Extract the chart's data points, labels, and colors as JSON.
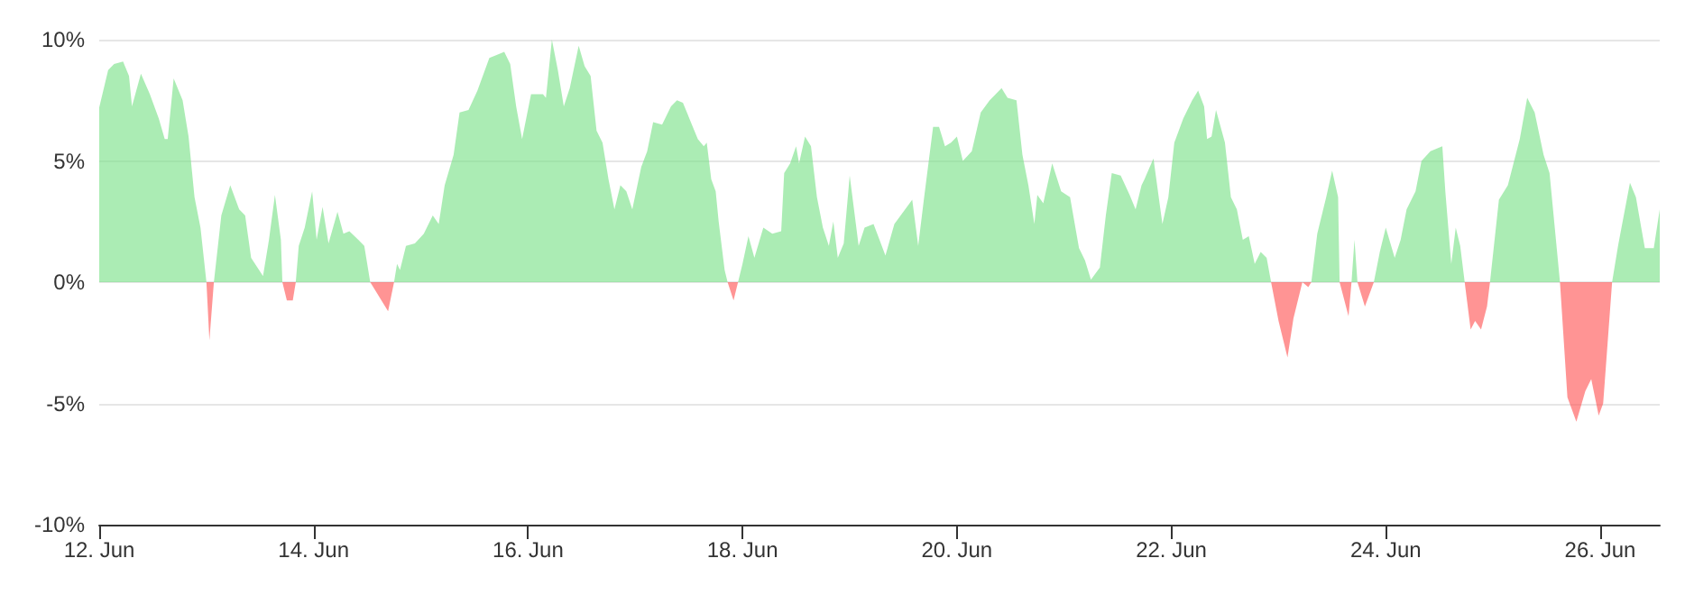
{
  "chart_data": {
    "type": "area",
    "xlim": [
      "--06-12",
      "--06-26T13:20"
    ],
    "xticks": [
      {
        "value": "--06-12",
        "label": "12. Jun"
      },
      {
        "value": "--06-14",
        "label": "14. Jun"
      },
      {
        "value": "--06-16",
        "label": "16. Jun"
      },
      {
        "value": "--06-18",
        "label": "18. Jun"
      },
      {
        "value": "--06-20",
        "label": "20. Jun"
      },
      {
        "value": "--06-22",
        "label": "22. Jun"
      },
      {
        "value": "--06-24",
        "label": "24. Jun"
      },
      {
        "value": "--06-26",
        "label": "26. Jun"
      }
    ],
    "ylim": [
      -10,
      10
    ],
    "yticks": [
      {
        "value": -10,
        "label": "-10%"
      },
      {
        "value": -5,
        "label": "-5%"
      },
      {
        "value": 0,
        "label": "0%"
      },
      {
        "value": 5,
        "label": "5%"
      },
      {
        "value": 10,
        "label": "10%"
      }
    ],
    "grid": "y",
    "marker": "none",
    "x": [
      "--06-12T00:00",
      "--06-12T02:00",
      "--06-12T03:20",
      "--06-12T05:20",
      "--06-12T06:40",
      "--06-12T07:20",
      "--06-12T09:20",
      "--06-12T11:20",
      "--06-12T13:20",
      "--06-12T14:40",
      "--06-12T15:20",
      "--06-12T16:40",
      "--06-12T18:40",
      "--06-12T20:00",
      "--06-12T21:20",
      "--06-12T22:40",
      "--06-13T00:00",
      "--06-13T00:40",
      "--06-13T01:40",
      "--06-13T03:20",
      "--06-13T05:20",
      "--06-13T07:20",
      "--06-13T08:40",
      "--06-13T10:00",
      "--06-13T12:40",
      "--06-13T14:00",
      "--06-13T15:20",
      "--06-13T16:40",
      "--06-13T17:00",
      "--06-13T18:00",
      "--06-13T19:20",
      "--06-13T20:00",
      "--06-13T20:40",
      "--06-13T22:00",
      "--06-13T23:40",
      "--06-14T00:40",
      "--06-14T02:00",
      "--06-14T03:20",
      "--06-14T05:20",
      "--06-14T06:40",
      "--06-14T08:00",
      "--06-14T10:00",
      "--06-14T11:20",
      "--06-14T12:40",
      "--06-14T16:40",
      "--06-14T18:00",
      "--06-14T18:40",
      "--06-14T19:20",
      "--06-14T20:40",
      "--06-14T22:40",
      "--06-15T00:40",
      "--06-15T02:40",
      "--06-15T04:00",
      "--06-15T05:20",
      "--06-15T07:20",
      "--06-15T08:40",
      "--06-15T10:40",
      "--06-15T12:40",
      "--06-15T15:20",
      "--06-15T17:20",
      "--06-15T18:40",
      "--06-15T20:00",
      "--06-15T21:20",
      "--06-15T22:40",
      "--06-16T00:40",
      "--06-16T03:20",
      "--06-16T04:00",
      "--06-16T05:20",
      "--06-16T06:40",
      "--06-16T08:00",
      "--06-16T09:20",
      "--06-16T11:20",
      "--06-16T12:40",
      "--06-16T14:00",
      "--06-16T15:20",
      "--06-16T16:40",
      "--06-16T18:00",
      "--06-16T19:20",
      "--06-16T20:40",
      "--06-16T22:00",
      "--06-16T23:20",
      "--06-17T01:20",
      "--06-17T02:40",
      "--06-17T04:00",
      "--06-17T06:00",
      "--06-17T08:00",
      "--06-17T09:20",
      "--06-17T10:40",
      "--06-17T12:40",
      "--06-17T14:00",
      "--06-17T15:20",
      "--06-17T16:00",
      "--06-17T17:00",
      "--06-17T18:00",
      "--06-17T18:40",
      "--06-17T20:00",
      "--06-17T20:40",
      "--06-17T22:00",
      "--06-17T23:00",
      "--06-18T00:00",
      "--06-18T01:20",
      "--06-18T02:40",
      "--06-18T04:40",
      "--06-18T06:40",
      "--06-18T08:40",
      "--06-18T09:20",
      "--06-18T10:40",
      "--06-18T12:00",
      "--06-18T12:40",
      "--06-18T14:00",
      "--06-18T15:20",
      "--06-18T16:40",
      "--06-18T18:00",
      "--06-18T19:20",
      "--06-18T20:20",
      "--06-18T21:20",
      "--06-18T22:40",
      "--06-19T00:00",
      "--06-19T02:00",
      "--06-19T03:20",
      "--06-19T05:20",
      "--06-19T08:00",
      "--06-19T10:00",
      "--06-19T12:00",
      "--06-19T14:00",
      "--06-19T15:20",
      "--06-19T16:40",
      "--06-19T18:40",
      "--06-19T20:00",
      "--06-19T21:20",
      "--06-19T22:40",
      "--06-20T00:00",
      "--06-20T01:20",
      "--06-20T03:20",
      "--06-20T05:20",
      "--06-20T07:20",
      "--06-20T10:00",
      "--06-20T11:20",
      "--06-20T13:20",
      "--06-20T14:40",
      "--06-20T16:00",
      "--06-20T17:20",
      "--06-20T18:00",
      "--06-20T19:20",
      "--06-20T21:20",
      "--06-20T23:20",
      "--06-21T01:20",
      "--06-21T03:20",
      "--06-21T04:40",
      "--06-21T06:00",
      "--06-21T08:00",
      "--06-21T09:20",
      "--06-21T10:40",
      "--06-21T12:40",
      "--06-21T14:40",
      "--06-21T16:00",
      "--06-21T17:20",
      "--06-21T18:00",
      "--06-21T20:00",
      "--06-21T22:00",
      "--06-21T23:20",
      "--06-22T00:40",
      "--06-22T02:40",
      "--06-22T04:40",
      "--06-22T06:00",
      "--06-22T07:20",
      "--06-22T08:00",
      "--06-22T09:00",
      "--06-22T10:00",
      "--06-22T12:00",
      "--06-22T13:20",
      "--06-22T14:40",
      "--06-22T16:00",
      "--06-22T17:20",
      "--06-22T18:40",
      "--06-22T20:00",
      "--06-22T21:20",
      "--06-22T22:20",
      "--06-23T00:00",
      "--06-23T02:00",
      "--06-23T03:20",
      "--06-23T05:20",
      "--06-23T06:40",
      "--06-23T07:20",
      "--06-23T08:40",
      "--06-23T10:40",
      "--06-23T12:00",
      "--06-23T13:20",
      "--06-23T13:40",
      "--06-23T15:40",
      "--06-23T16:20",
      "--06-23T17:00",
      "--06-23T17:40",
      "--06-23T19:20",
      "--06-23T21:20",
      "--06-23T22:40",
      "--06-24T00:00",
      "--06-24T02:00",
      "--06-24T03:20",
      "--06-24T04:40",
      "--06-24T06:40",
      "--06-24T08:00",
      "--06-24T10:00",
      "--06-24T12:40",
      "--06-24T13:20",
      "--06-24T14:40",
      "--06-24T15:40",
      "--06-24T16:40",
      "--06-24T17:40",
      "--06-24T19:00",
      "--06-24T20:00",
      "--06-24T21:20",
      "--06-24T22:40",
      "--06-24T23:20",
      "--06-25T01:20",
      "--06-25T03:20",
      "--06-25T06:00",
      "--06-25T07:40",
      "--06-25T09:20",
      "--06-25T11:20",
      "--06-25T12:40",
      "--06-25T15:00",
      "--06-25T16:40",
      "--06-25T18:40",
      "--06-25T20:40",
      "--06-25T22:00",
      "--06-25T23:40",
      "--06-26T00:40",
      "--06-26T02:40",
      "--06-26T04:00",
      "--06-26T06:40",
      "--06-26T08:00",
      "--06-26T10:00",
      "--06-26T12:00",
      "--06-26T13:20"
    ],
    "series": [
      {
        "color": "#7ee28c",
        "values": [
          7.2,
          8.75,
          9,
          9.1,
          8.5,
          7.25,
          8.6,
          7.75,
          6.75,
          5.9,
          5.9,
          8.4,
          7.5,
          6,
          3.5,
          2.25,
          0,
          null,
          0,
          2.75,
          4,
          3,
          2.75,
          1,
          0.25,
          1.75,
          3.6,
          1.75,
          0,
          null,
          null,
          0,
          1.5,
          2.25,
          3.75,
          1.75,
          3.1,
          1.6,
          2.9,
          2,
          2.1,
          1.75,
          1.5,
          0,
          null,
          0,
          0.75,
          0.5,
          1.5,
          1.6,
          2,
          2.75,
          2.4,
          4,
          5.25,
          7,
          7.1,
          7.9,
          9.25,
          9.4,
          9.5,
          9,
          7.25,
          5.9,
          7.75,
          7.75,
          7.6,
          10,
          8.75,
          7.25,
          8,
          9.75,
          8.9,
          8.5,
          6.25,
          5.75,
          4.25,
          3,
          4,
          3.75,
          3,
          4.75,
          5.4,
          6.6,
          6.5,
          7.25,
          7.5,
          7.4,
          6.5,
          5.9,
          5.6,
          5.75,
          4.25,
          3.75,
          2.5,
          0.5,
          0,
          null,
          0,
          0.75,
          1.9,
          1,
          2.25,
          2,
          2.1,
          4.5,
          4.9,
          5.6,
          4.9,
          6,
          5.6,
          3.5,
          2.25,
          1.5,
          2.5,
          1,
          1.6,
          4.4,
          1.5,
          2.25,
          2.4,
          1.1,
          2.4,
          2.9,
          3.4,
          1.5,
          3.5,
          6.4,
          6.4,
          5.6,
          5.75,
          6,
          5,
          5.4,
          7,
          7.5,
          8,
          7.6,
          7.5,
          5.25,
          4,
          2.4,
          3.6,
          3.25,
          4.9,
          3.75,
          3.5,
          1.4,
          0.9,
          0.1,
          0.6,
          2.75,
          4.5,
          4.4,
          3.6,
          3,
          4,
          4.25,
          5.1,
          2.4,
          3.5,
          5.75,
          6.75,
          7.5,
          7.9,
          7.25,
          5.9,
          6,
          7.1,
          5.75,
          3.5,
          3,
          1.75,
          1.9,
          0.75,
          1.25,
          1,
          0,
          null,
          null,
          null,
          null,
          null,
          0,
          2,
          3.5,
          4.6,
          3.5,
          0,
          null,
          0,
          1.75,
          0,
          null,
          0,
          1.25,
          2.25,
          1,
          1.75,
          3,
          3.75,
          5,
          5.4,
          5.6,
          3.75,
          0.75,
          2.25,
          1.5,
          0,
          null,
          null,
          null,
          null,
          0,
          3.4,
          4,
          5.9,
          7.6,
          7,
          5.25,
          4.5,
          0,
          null,
          null,
          null,
          null,
          null,
          null,
          0,
          1.5,
          4.1,
          3.5,
          1.4,
          1.4,
          3
        ]
      },
      {
        "color": "#ff5b5b",
        "values": [
          null,
          null,
          null,
          null,
          null,
          null,
          null,
          null,
          null,
          null,
          null,
          null,
          null,
          null,
          null,
          null,
          0,
          -2.4,
          0,
          null,
          null,
          null,
          null,
          null,
          null,
          null,
          null,
          null,
          0,
          -0.75,
          -0.75,
          0,
          null,
          null,
          null,
          null,
          null,
          null,
          null,
          null,
          null,
          null,
          null,
          0,
          -1.2,
          0,
          null,
          null,
          null,
          null,
          null,
          null,
          null,
          null,
          null,
          null,
          null,
          null,
          null,
          null,
          null,
          null,
          null,
          null,
          null,
          null,
          null,
          null,
          null,
          null,
          null,
          null,
          null,
          null,
          null,
          null,
          null,
          null,
          null,
          null,
          null,
          null,
          null,
          null,
          null,
          null,
          null,
          null,
          null,
          null,
          null,
          null,
          null,
          null,
          null,
          null,
          0,
          -0.75,
          0,
          null,
          null,
          null,
          null,
          null,
          null,
          null,
          null,
          null,
          null,
          null,
          null,
          null,
          null,
          null,
          null,
          null,
          null,
          null,
          null,
          null,
          null,
          null,
          null,
          null,
          null,
          null,
          null,
          null,
          null,
          null,
          null,
          null,
          null,
          null,
          null,
          null,
          null,
          null,
          null,
          null,
          null,
          null,
          null,
          null,
          null,
          null,
          null,
          null,
          null,
          null,
          null,
          null,
          null,
          null,
          null,
          null,
          null,
          null,
          null,
          null,
          null,
          null,
          null,
          null,
          null,
          null,
          null,
          null,
          null,
          null,
          null,
          null,
          null,
          null,
          null,
          null,
          null,
          0,
          -1.6,
          -3.1,
          -1.5,
          0,
          -0.2,
          0,
          null,
          null,
          null,
          null,
          0,
          -1.4,
          0,
          null,
          0,
          -1,
          0,
          null,
          null,
          null,
          null,
          null,
          null,
          null,
          null,
          null,
          null,
          null,
          null,
          null,
          0,
          -1.95,
          -1.6,
          -1.95,
          -1,
          0,
          null,
          null,
          null,
          null,
          null,
          null,
          null,
          0,
          -4.75,
          -5.75,
          -4.5,
          -4,
          -5.5,
          -5,
          0,
          null,
          null,
          null,
          null,
          null,
          null
        ]
      }
    ]
  }
}
